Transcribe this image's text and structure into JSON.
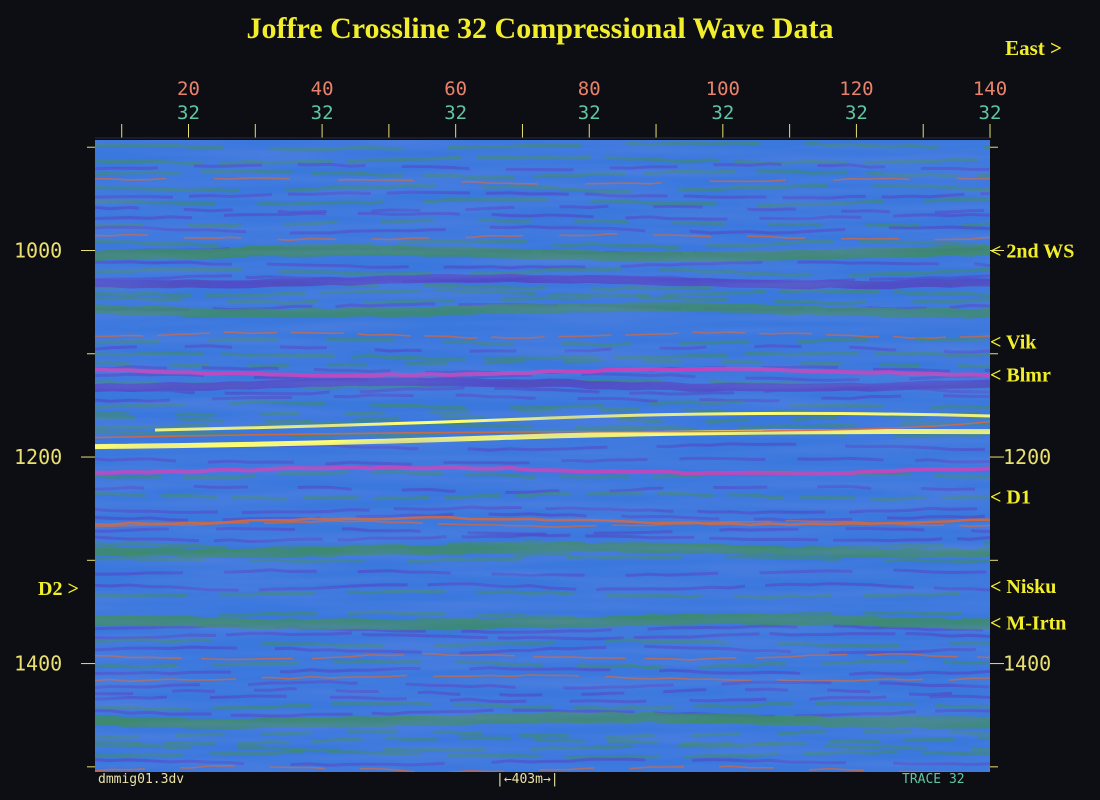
{
  "title": "Joffre Crossline 32 Compressional Wave Data",
  "direction_label": "East >",
  "top_axis": {
    "trace_labels": [
      "20",
      "40",
      "60",
      "80",
      "100",
      "120",
      "140"
    ],
    "crossline_labels": [
      "32",
      "32",
      "32",
      "32",
      "32",
      "32",
      "32"
    ],
    "trace_range": [
      6,
      140
    ]
  },
  "time_axis": {
    "tick_labels": [
      "1000",
      "1200",
      "1400"
    ],
    "tick_values": [
      1000,
      1200,
      1400
    ],
    "range": [
      893,
      1505
    ]
  },
  "horizons_right": [
    {
      "label": "< 2nd WS",
      "time": 1000
    },
    {
      "label": "< Vik",
      "time": 1088
    },
    {
      "label": "< Blmr",
      "time": 1120
    },
    {
      "label": "< D1",
      "time": 1238
    },
    {
      "label": "< Nisku",
      "time": 1325
    },
    {
      "label": "< M-Irtn",
      "time": 1360
    }
  ],
  "horizons_left": [
    {
      "label": "D2 >",
      "time": 1327
    }
  ],
  "footer": {
    "filename": "dmmig01.3dv",
    "scale_bar": "|←403m→|",
    "trace_label": "TRACE 32"
  },
  "colors": {
    "title": "#f2ef2a",
    "trace_numbers": "#e8826a",
    "crossline_numbers": "#5fc6a2",
    "time_labels": "#e9e070",
    "section_blue": "#3a78de",
    "band_green": "#3f8c63",
    "band_purple": "#5446c4",
    "band_magenta": "#d23fb9",
    "band_orange": "#e0662e",
    "strong_reflector": "#ffff73"
  }
}
